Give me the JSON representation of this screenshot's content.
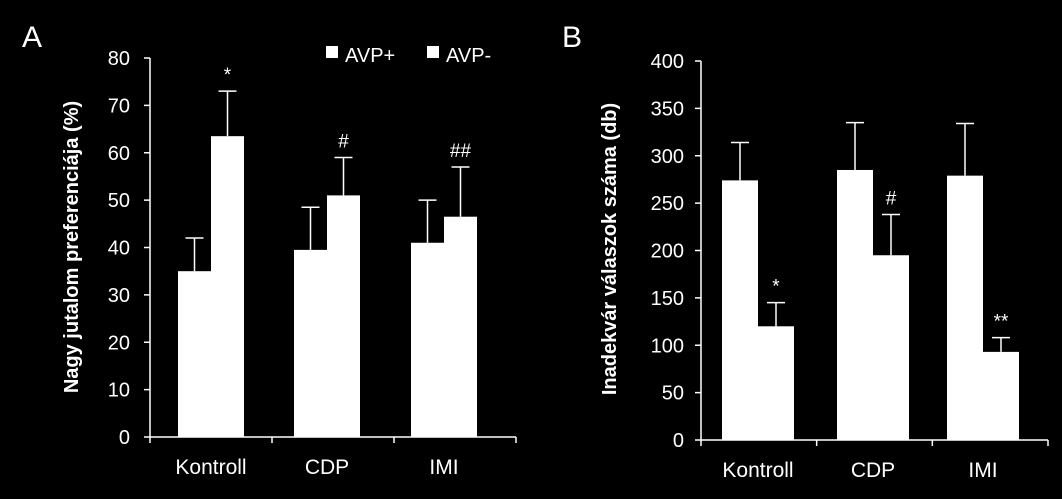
{
  "chart_data": [
    {
      "type": "bar",
      "panel_label": "A",
      "ylabel": "Nagy jutalom preferenciája (%)",
      "xlabel": "",
      "categories": [
        "Kontroll",
        "CDP",
        "IMI"
      ],
      "ylim": [
        0,
        80
      ],
      "yticks": [
        0,
        10,
        20,
        30,
        40,
        50,
        60,
        70,
        80
      ],
      "legend_position": "top-right",
      "series": [
        {
          "name": "AVP+",
          "values": [
            35,
            39.5,
            41
          ],
          "errors": [
            7,
            9,
            9
          ],
          "color": "#ffffff"
        },
        {
          "name": "AVP-",
          "values": [
            63.5,
            51,
            46.5
          ],
          "errors": [
            9.5,
            8,
            10.5
          ],
          "color": "#ffffff"
        }
      ],
      "annotations": [
        {
          "series": 1,
          "category": 0,
          "text": "*"
        },
        {
          "series": 1,
          "category": 1,
          "text": "#"
        },
        {
          "series": 1,
          "category": 2,
          "text": "##"
        }
      ]
    },
    {
      "type": "bar",
      "panel_label": "B",
      "ylabel": "Inadekvár válaszok száma (db)",
      "xlabel": "",
      "categories": [
        "Kontroll",
        "CDP",
        "IMI"
      ],
      "ylim": [
        0,
        400
      ],
      "yticks": [
        0,
        50,
        100,
        150,
        200,
        250,
        300,
        350,
        400
      ],
      "series": [
        {
          "name": "AVP+",
          "values": [
            274,
            285,
            279
          ],
          "errors": [
            40,
            50,
            55
          ],
          "color": "#ffffff"
        },
        {
          "name": "AVP-",
          "values": [
            120,
            195,
            93
          ],
          "errors": [
            25,
            43,
            15
          ],
          "color": "#ffffff"
        }
      ],
      "annotations": [
        {
          "series": 1,
          "category": 0,
          "text": "*"
        },
        {
          "series": 1,
          "category": 1,
          "text": "#"
        },
        {
          "series": 1,
          "category": 2,
          "text": "**"
        }
      ]
    }
  ]
}
